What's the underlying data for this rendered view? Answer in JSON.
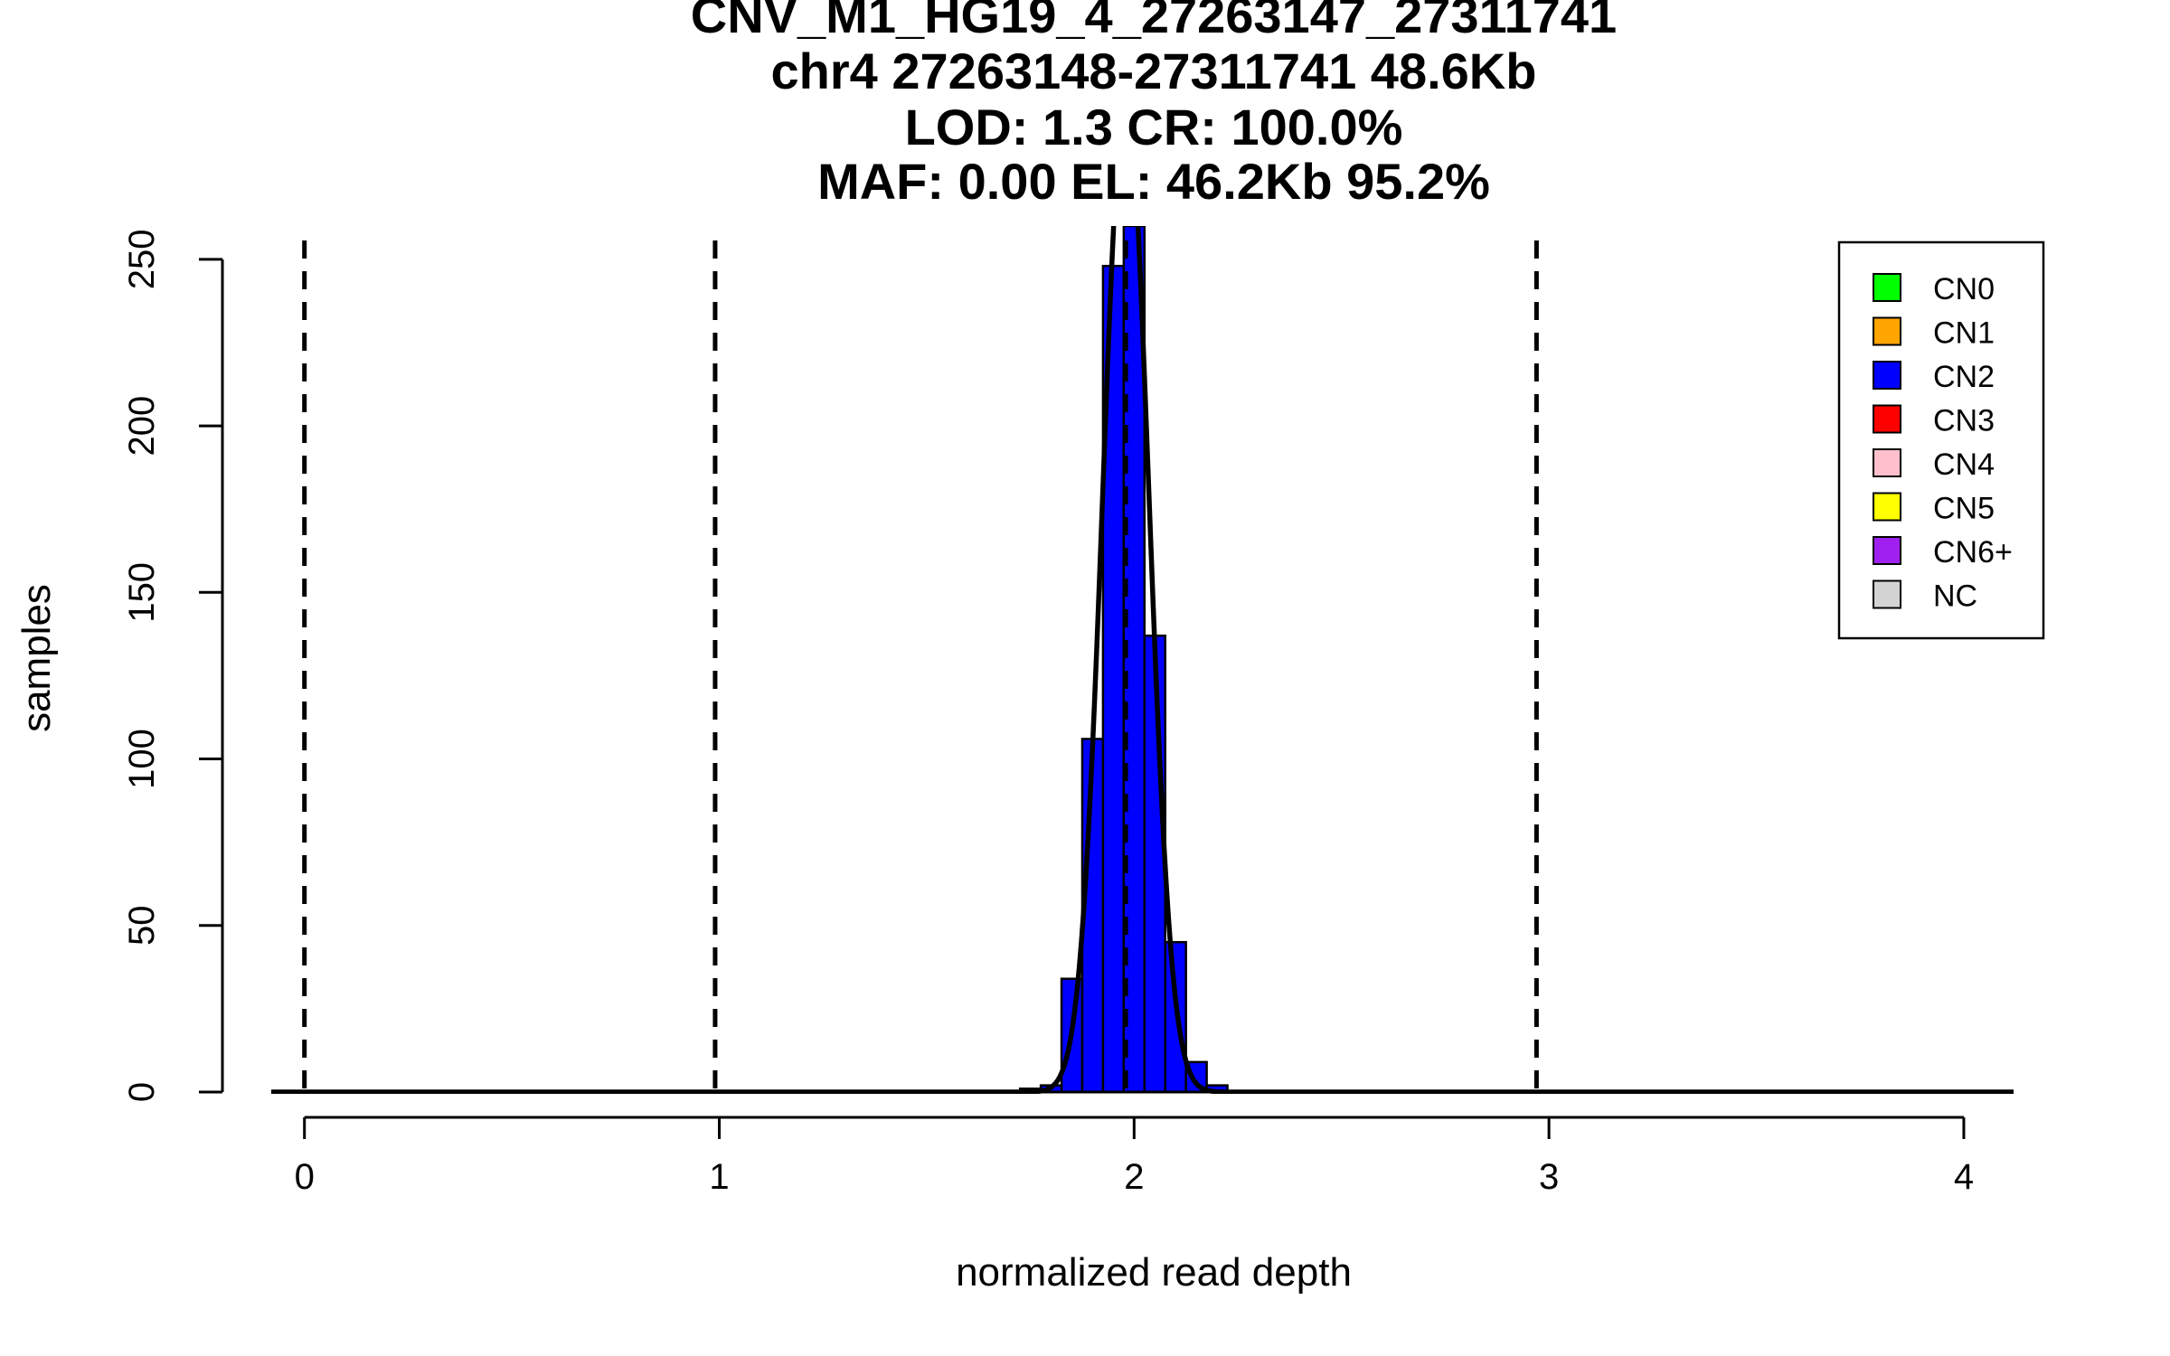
{
  "chart_data": {
    "type": "bar",
    "title": [
      "CNV_M1_HG19_4_27263147_27311741",
      "chr4 27263148-27311741 48.6Kb",
      "LOD: 1.3 CR: 100.0%",
      "MAF: 0.00 EL: 46.2Kb 95.2%"
    ],
    "xlabel": "normalized read depth",
    "ylabel": "samples",
    "xlim": [
      -0.08,
      4.12
    ],
    "ylim": [
      0,
      260
    ],
    "x_ticks": [
      "0",
      "1",
      "2",
      "3",
      "4"
    ],
    "y_ticks": [
      "0",
      "50",
      "100",
      "150",
      "200",
      "250"
    ],
    "bin_width": 0.05,
    "bins": [
      {
        "x0": -0.075,
        "x1": 0.075,
        "value": 0.3,
        "color": "#0000ff"
      },
      {
        "x0": 0.83,
        "x1": 1.17,
        "value": 0.3,
        "color": "#0000ff"
      },
      {
        "x0": 1.725,
        "x1": 1.775,
        "value": 1,
        "color": "#0000ff"
      },
      {
        "x0": 1.775,
        "x1": 1.825,
        "value": 2,
        "color": "#0000ff"
      },
      {
        "x0": 1.825,
        "x1": 1.875,
        "value": 34,
        "color": "#0000ff"
      },
      {
        "x0": 1.875,
        "x1": 1.925,
        "value": 106,
        "color": "#0000ff"
      },
      {
        "x0": 1.925,
        "x1": 1.975,
        "value": 248,
        "color": "#0000ff"
      },
      {
        "x0": 1.975,
        "x1": 2.025,
        "value": 260,
        "color": "#0000ff"
      },
      {
        "x0": 2.025,
        "x1": 2.075,
        "value": 137,
        "color": "#0000ff"
      },
      {
        "x0": 2.075,
        "x1": 2.125,
        "value": 45,
        "color": "#0000ff"
      },
      {
        "x0": 2.125,
        "x1": 2.175,
        "value": 9,
        "color": "#0000ff"
      },
      {
        "x0": 2.175,
        "x1": 2.225,
        "value": 2,
        "color": "#0000ff"
      },
      {
        "x0": 2.69,
        "x1": 3.26,
        "value": 0.3,
        "color": "#0000ff"
      }
    ],
    "fit_curve": {
      "mean": 1.98,
      "sd": 0.055,
      "peak": 300
    },
    "reference_lines_x": [
      0,
      0.99,
      1.98,
      2.97
    ],
    "legend": {
      "placement": "top-right",
      "entries": [
        {
          "label": "CN0",
          "color": "#00ff00"
        },
        {
          "label": "CN1",
          "color": "#ffa500"
        },
        {
          "label": "CN2",
          "color": "#0000ff"
        },
        {
          "label": "CN3",
          "color": "#ff0000"
        },
        {
          "label": "CN4",
          "color": "#ffc0cb"
        },
        {
          "label": "CN5",
          "color": "#ffff00"
        },
        {
          "label": "CN6+",
          "color": "#a020f0"
        },
        {
          "label": "NC",
          "color": "#d3d3d3"
        }
      ]
    }
  }
}
